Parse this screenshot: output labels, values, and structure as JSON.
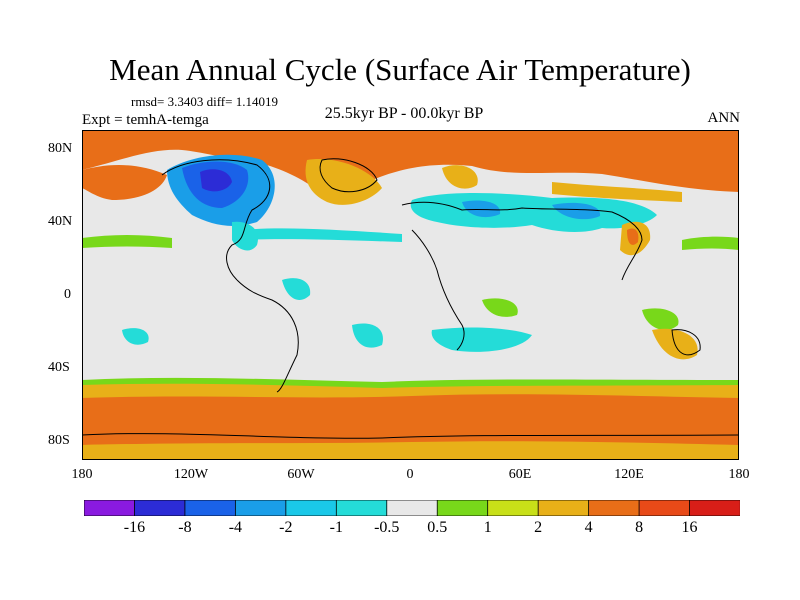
{
  "title": "Mean Annual Cycle (Surface Air Temperature)",
  "stats": "rmsd= 3.3403 diff= 1.14019",
  "experiment": "Expt = temhA-temga",
  "period": "25.5kyr BP - 00.0kyr BP",
  "season": "ANN",
  "x_ticks": [
    "180",
    "120W",
    "60W",
    "0",
    "60E",
    "120E",
    "180"
  ],
  "y_ticks": [
    "80N",
    "40N",
    "0",
    "40S",
    "80S"
  ],
  "colorbar": {
    "labels": [
      "-16",
      "-8",
      "-4",
      "-2",
      "-1",
      "-0.5",
      "0.5",
      "1",
      "2",
      "4",
      "8",
      "16"
    ],
    "colors": [
      "#8a1ae0",
      "#2c2cd6",
      "#1a62e8",
      "#1a9ee8",
      "#1ac8e8",
      "#24dcd8",
      "#e8e8e8",
      "#78d81a",
      "#c8e018",
      "#e8b018",
      "#e86e18",
      "#e84a18",
      "#d81e18"
    ]
  },
  "colors": {
    "land_outline": "#000000",
    "neutral": "#e8e8e8",
    "warm_strong": "#e86e18",
    "warm_medium": "#e8b018",
    "warm_light": "#78d81a",
    "cool_light": "#24dcd8",
    "cool_medium": "#1a9ee8",
    "cool_strong": "#1a62e8",
    "cool_very_strong": "#2c2cd6"
  }
}
